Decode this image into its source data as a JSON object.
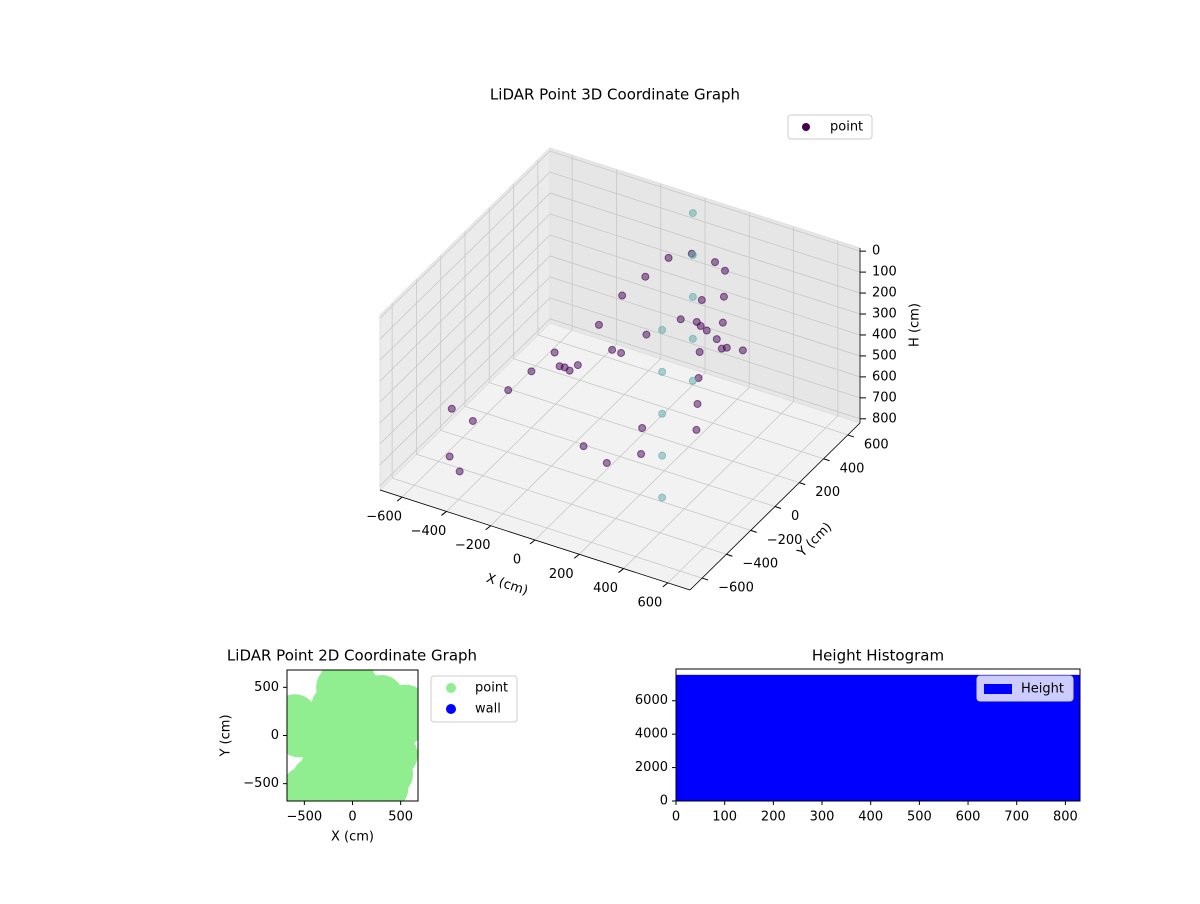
{
  "chart_data": [
    {
      "type": "scatter3d",
      "title": "LiDAR Point 3D Coordinate Graph",
      "xlabel": "X (cm)",
      "ylabel": "Y (cm)",
      "zlabel": "H (cm)",
      "xlim": [
        -700,
        700
      ],
      "ylim": [
        -700,
        700
      ],
      "zlim": [
        820,
        -15
      ],
      "xticks": [
        {
          "value": -600,
          "label": "−600"
        },
        {
          "value": -400,
          "label": "−400"
        },
        {
          "value": -200,
          "label": "−200"
        },
        0,
        200,
        400,
        600
      ],
      "yticks": [
        {
          "value": -600,
          "label": "−600"
        },
        {
          "value": -400,
          "label": "−400"
        },
        {
          "value": -200,
          "label": "−200"
        },
        0,
        200,
        400,
        600
      ],
      "zticks": [
        0,
        100,
        200,
        300,
        400,
        500,
        600,
        700,
        800
      ],
      "grid": true,
      "legend": "upper right",
      "series": [
        {
          "name": "point",
          "color": "#440154",
          "x": [
            -650,
            -500,
            -450,
            -400,
            -350,
            -300,
            -250,
            -200,
            -150,
            -100,
            -50,
            0,
            50,
            100,
            150,
            200,
            250,
            300,
            350,
            400,
            -300,
            -200,
            -100,
            0,
            100,
            200,
            300,
            400,
            500,
            -550,
            -450,
            100,
            150,
            50,
            0,
            -50,
            200,
            250,
            300,
            350
          ],
          "y": [
            -200,
            -300,
            -100,
            0,
            100,
            50,
            0,
            -50,
            100,
            200,
            300,
            400,
            500,
            600,
            400,
            300,
            200,
            100,
            0,
            -100,
            200,
            300,
            400,
            500,
            450,
            350,
            250,
            150,
            100,
            -400,
            -500,
            0,
            -100,
            -200,
            -300,
            100,
            500,
            400,
            300,
            200
          ],
          "h": [
            700,
            650,
            600,
            550,
            500,
            520,
            480,
            450,
            300,
            200,
            150,
            100,
            120,
            200,
            250,
            300,
            350,
            400,
            450,
            500,
            600,
            550,
            500,
            450,
            400,
            350,
            300,
            250,
            200,
            780,
            760,
            650,
            700,
            720,
            600,
            400,
            150,
            200,
            250,
            300
          ]
        },
        {
          "color": "#5fa8a8",
          "x": [
            0,
            0,
            0,
            0,
            0,
            300,
            300,
            300,
            300,
            300
          ],
          "y": [
            600,
            600,
            600,
            600,
            600,
            -200,
            -200,
            -200,
            -200,
            -200
          ],
          "h": [
            0,
            200,
            400,
            600,
            800,
            0,
            200,
            400,
            600,
            800
          ]
        }
      ]
    },
    {
      "type": "scatter",
      "title": "LiDAR Point 2D Coordinate Graph",
      "xlabel": "X (cm)",
      "ylabel": "Y (cm)",
      "xlim": [
        -680,
        680
      ],
      "ylim": [
        -680,
        680
      ],
      "xticks": [
        {
          "value": -500,
          "label": "−500"
        },
        0,
        500
      ],
      "yticks": [
        {
          "value": -500,
          "label": "−500"
        },
        0,
        500
      ],
      "legend": "outside upper right",
      "series": [
        {
          "name": "point",
          "color": "lightgreen",
          "x": [
            -600,
            -550,
            -500,
            -400,
            -300,
            -250,
            -200,
            -150,
            -100,
            -50,
            0,
            50,
            100,
            150,
            200,
            250,
            300,
            350,
            400,
            450,
            500,
            550,
            0,
            100,
            200,
            300,
            -300,
            -200,
            100,
            200,
            300,
            400,
            -250,
            -150,
            0,
            -100
          ],
          "y": [
            200,
            0,
            -550,
            -450,
            -300,
            100,
            300,
            500,
            600,
            400,
            600,
            500,
            300,
            100,
            -100,
            -300,
            -500,
            -550,
            -400,
            -200,
            100,
            300,
            0,
            -200,
            200,
            400,
            -350,
            -250,
            -600,
            -450,
            0,
            200,
            -100,
            200,
            -50,
            -600
          ]
        },
        {
          "name": "wall",
          "color": "blue",
          "x": [],
          "y": []
        }
      ]
    },
    {
      "type": "histogram",
      "title": "Height Histogram",
      "bins": [
        0,
        830
      ],
      "values": [
        7550
      ],
      "color": "blue",
      "name": "Height",
      "xlim": [
        0,
        830
      ],
      "ylim": [
        0,
        7900
      ],
      "xticks": [
        0,
        100,
        200,
        300,
        400,
        500,
        600,
        700,
        800
      ],
      "yticks": [
        0,
        2000,
        4000,
        6000
      ],
      "legend": "upper right"
    }
  ]
}
